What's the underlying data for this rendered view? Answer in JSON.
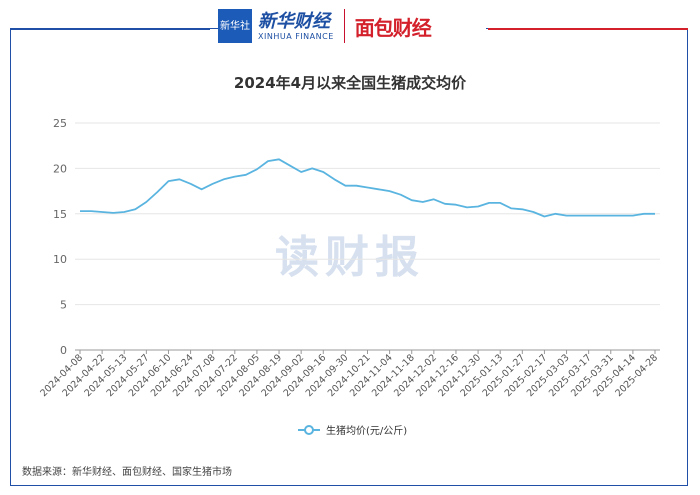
{
  "header": {
    "logo_text": "新华社",
    "xinhua_cn": "新华财经",
    "xinhua_en": "XINHUA FINANCE",
    "mianbao": "面包财经"
  },
  "watermark": "读财报",
  "footer": "数据来源：新华财经、面包财经、国家生猪市场",
  "colors": {
    "line": "#5ab4e0",
    "frame_left": "#1f4fa6",
    "frame_right": "#d3202a",
    "grid": "#e6e6e6"
  },
  "chart_data": {
    "type": "line",
    "title": "2024年4月以来全国生猪成交均价",
    "xlabel": "",
    "ylabel": "",
    "ylim": [
      0,
      25
    ],
    "yticks": [
      "0",
      "5",
      "10",
      "15",
      "20",
      "25"
    ],
    "grid": true,
    "legend_position": "bottom",
    "x_tick_labels": [
      "2024-04-08",
      "2024-04-22",
      "2024-05-13",
      "2024-05-27",
      "2024-06-10",
      "2024-06-24",
      "2024-07-08",
      "2024-07-22",
      "2024-08-05",
      "2024-08-19",
      "2024-09-02",
      "2024-09-16",
      "2024-09-30",
      "2024-10-21",
      "2024-11-04",
      "2024-11-18",
      "2024-12-02",
      "2024-12-16",
      "2024-12-30",
      "2025-01-13",
      "2025-01-27",
      "2025-02-17",
      "2025-03-03",
      "2025-03-17",
      "2025-03-31",
      "2025-04-14",
      "2025-04-28"
    ],
    "series": [
      {
        "name": "生猪均价(元/公斤)",
        "values": [
          15.3,
          15.3,
          15.2,
          15.1,
          15.2,
          15.5,
          16.3,
          17.4,
          18.6,
          18.8,
          18.3,
          17.7,
          18.3,
          18.8,
          19.1,
          19.3,
          19.9,
          20.8,
          21.0,
          20.3,
          19.6,
          20.0,
          19.6,
          18.8,
          18.1,
          18.1,
          17.9,
          17.7,
          17.5,
          17.1,
          16.5,
          16.3,
          16.6,
          16.1,
          16.0,
          15.7,
          15.8,
          16.2,
          16.2,
          15.6,
          15.5,
          15.2,
          14.7,
          15.0,
          14.8,
          14.8,
          14.8,
          14.8,
          14.8,
          14.8,
          14.8,
          15.0,
          15.0
        ]
      }
    ]
  }
}
